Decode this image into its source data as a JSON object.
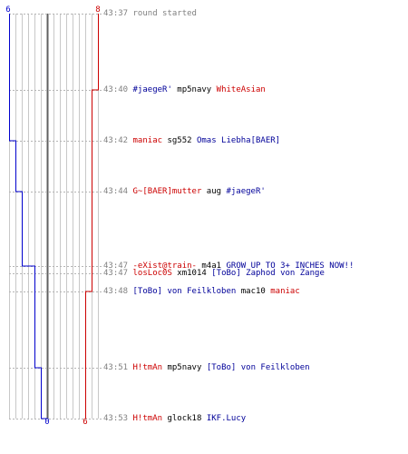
{
  "graph": {
    "top_left_label": "6",
    "top_right_label": "8",
    "bottom_left_label": "0",
    "bottom_right_label": "6",
    "colors": {
      "blue_line": "#0000cc",
      "red_line": "#cc0000",
      "grid": "#c8c8c8",
      "center": "#606060"
    }
  },
  "chart_data": {
    "type": "line",
    "x_unit": "minutes into round (elapsed)",
    "series": [
      {
        "color": "#0000cc",
        "points": [
          {
            "time": "43:37",
            "value": 6
          },
          {
            "time": "43:42",
            "value": 5
          },
          {
            "time": "43:44",
            "value": 4
          },
          {
            "time": "43:47",
            "value": 2
          },
          {
            "time": "43:51",
            "value": 1
          },
          {
            "time": "43:53",
            "value": 0
          }
        ]
      },
      {
        "color": "#cc0000",
        "points": [
          {
            "time": "43:37",
            "value": 8
          },
          {
            "time": "43:40",
            "value": 7
          },
          {
            "time": "43:48",
            "value": 6
          }
        ]
      }
    ]
  },
  "events": [
    {
      "time": "43:37",
      "parts": [
        {
          "text": "round started",
          "color": "gray"
        }
      ]
    },
    {
      "time": "43:40",
      "parts": [
        {
          "text": "#jaegeR'",
          "color": "blue"
        },
        {
          "text": " mp5navy ",
          "color": "black"
        },
        {
          "text": "WhiteAsian",
          "color": "red"
        }
      ]
    },
    {
      "time": "43:42",
      "parts": [
        {
          "text": "maniac",
          "color": "red"
        },
        {
          "text": " sg552 ",
          "color": "black"
        },
        {
          "text": "Omas Liebha[BAER]",
          "color": "blue"
        }
      ]
    },
    {
      "time": "43:44",
      "parts": [
        {
          "text": "G~[BAER]mutter",
          "color": "red"
        },
        {
          "text": " aug ",
          "color": "black"
        },
        {
          "text": "#jaegeR'",
          "color": "blue"
        }
      ]
    },
    {
      "time": "43:47",
      "parts": [
        {
          "text": "-eXist@train-",
          "color": "red"
        },
        {
          "text": " m4a1 ",
          "color": "black"
        },
        {
          "text": "GROW UP TO 3+ INCHES NOW!!",
          "color": "blue"
        }
      ]
    },
    {
      "time": "43:47",
      "parts": [
        {
          "text": "losLoc0S",
          "color": "red"
        },
        {
          "text": " xm1014 ",
          "color": "black"
        },
        {
          "text": "[ToBo] Zaphod von Zange",
          "color": "blue"
        }
      ]
    },
    {
      "time": "43:48",
      "parts": [
        {
          "text": "[ToBo] von Feilkloben",
          "color": "blue"
        },
        {
          "text": " mac10 ",
          "color": "black"
        },
        {
          "text": "maniac",
          "color": "red"
        }
      ]
    },
    {
      "time": "43:51",
      "parts": [
        {
          "text": "H!tmAn",
          "color": "red"
        },
        {
          "text": " mp5navy ",
          "color": "black"
        },
        {
          "text": "[ToBo] von Feilkloben",
          "color": "blue"
        }
      ]
    },
    {
      "time": "43:53",
      "parts": [
        {
          "text": "H!tmAn",
          "color": "red"
        },
        {
          "text": " glock18 ",
          "color": "black"
        },
        {
          "text": "IKF.Lucy",
          "color": "blue"
        }
      ]
    }
  ]
}
